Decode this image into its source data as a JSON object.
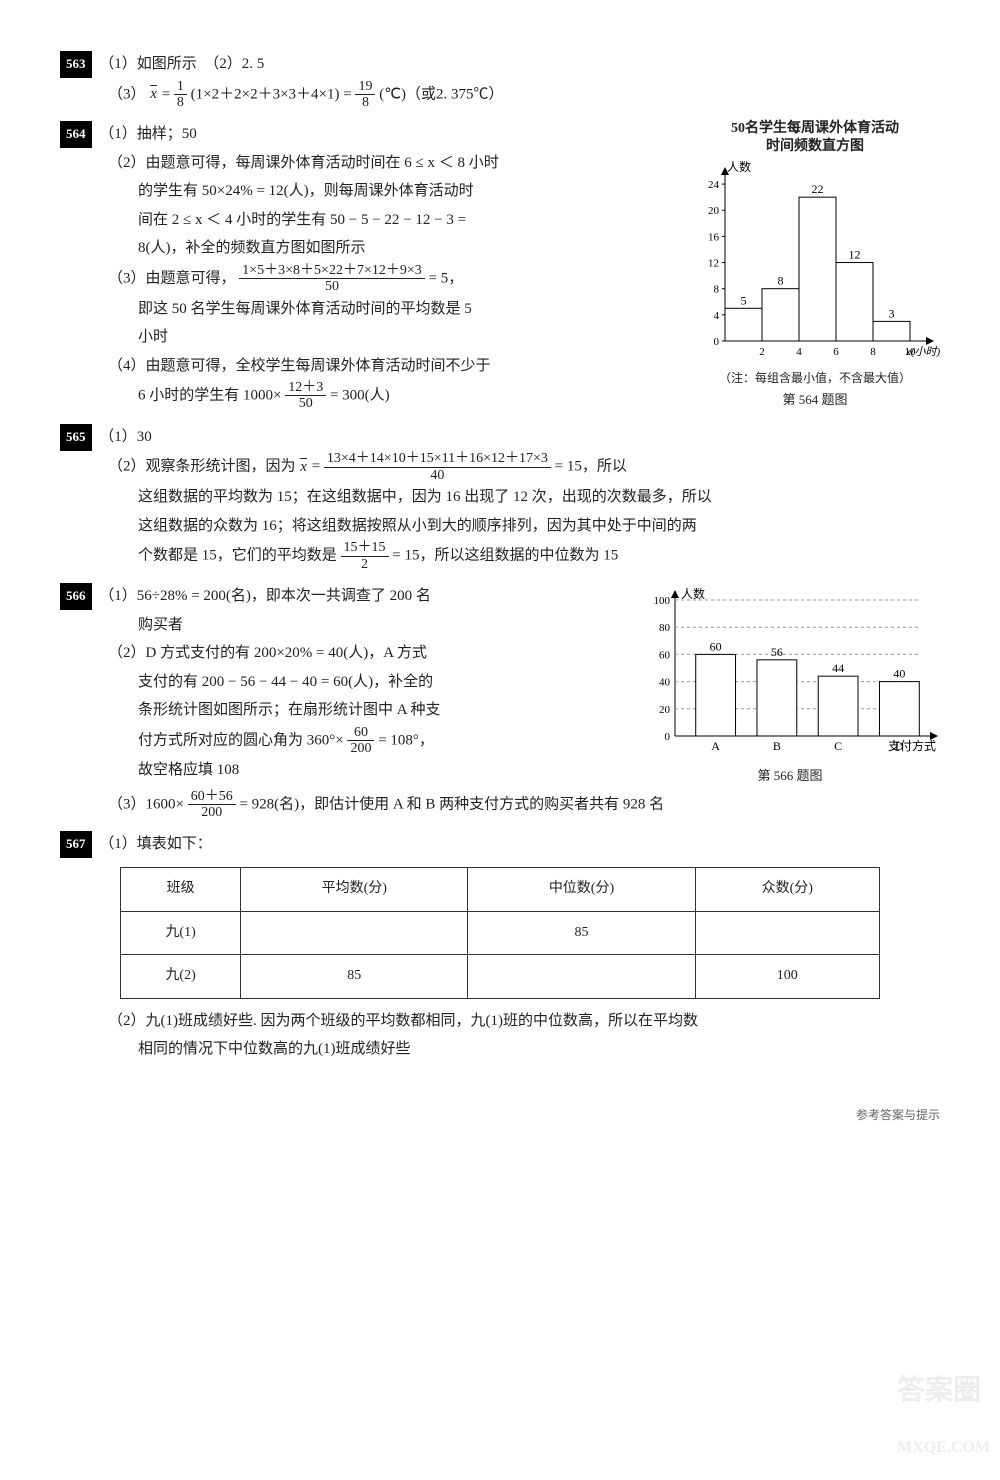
{
  "p563": {
    "num": "563",
    "part1": "（1）如图所示　（2）2. 5",
    "part3_pre": "（3）",
    "part3_body": " = ",
    "part3_f1_num": "1",
    "part3_f1_den": "8",
    "part3_mid": "(1×2＋2×2＋3×3＋4×1) = ",
    "part3_f2_num": "19",
    "part3_f2_den": "8",
    "part3_end": "(℃)（或2. 375℃）",
    "xbar": "x"
  },
  "p564": {
    "num": "564",
    "l1": "（1）抽样；50",
    "l2a": "（2）由题意可得，每周课外体育活动时间在 6 ≤ x ＜ 8 小时",
    "l2b": "的学生有 50×24% = 12(人)，则每周课外体育活动时",
    "l2c": "间在 2 ≤ x ＜ 4 小时的学生有 50 − 5 − 22 − 12 − 3 =",
    "l2d": "8(人)，补全的频数直方图如图所示",
    "l3a": "（3）由题意可得，",
    "l3_fnum": "1×5＋3×8＋5×22＋7×12＋9×3",
    "l3_fden": "50",
    "l3b": " = 5，",
    "l3c": "即这 50 名学生每周课外体育活动时间的平均数是 5",
    "l3d": "小时",
    "l4a": "（4）由题意可得，全校学生每周课外体育活动时间不少于",
    "l4b_pre": "6 小时的学生有 1000×",
    "l4_fnum": "12＋3",
    "l4_fden": "50",
    "l4b_post": " = 300(人)",
    "chart": {
      "title1": "50名学生每周课外体育活动",
      "title2": "时间频数直方图",
      "ylabel": "人数",
      "xlabel": "x(小时)",
      "note": "（注：每组含最小值，不含最大值）",
      "caption": "第 564 题图",
      "yticks": [
        0,
        4,
        8,
        12,
        16,
        20,
        24
      ],
      "xticks": [
        2,
        4,
        6,
        8,
        10
      ],
      "bars": [
        {
          "label": "5",
          "h": 5
        },
        {
          "label": "8",
          "h": 8
        },
        {
          "label": "22",
          "h": 22
        },
        {
          "label": "12",
          "h": 12
        },
        {
          "label": "3",
          "h": 3
        }
      ],
      "bar_stroke": "#000",
      "bar_fill": "#fff",
      "ymax": 26
    }
  },
  "p565": {
    "num": "565",
    "l1": "（1）30",
    "l2a": "（2）观察条形统计图，因为 ",
    "xbar": "x",
    "l2b": " = ",
    "fnum": "13×4＋14×10＋15×11＋16×12＋17×3",
    "fden": "40",
    "l2c": " = 15，所以",
    "l2d": "这组数据的平均数为 15；在这组数据中，因为 16 出现了 12 次，出现的次数最多，所以",
    "l2e": "这组数据的众数为 16；将这组数据按照从小到大的顺序排列，因为其中处于中间的两",
    "l2f_pre": "个数都是 15，它们的平均数是 ",
    "f2num": "15＋15",
    "f2den": "2",
    "l2f_post": " = 15，所以这组数据的中位数为 15"
  },
  "p566": {
    "num": "566",
    "l1a": "（1）56÷28% = 200(名)，即本次一共调查了 200 名",
    "l1b": "购买者",
    "l2a": "（2）D 方式支付的有 200×20% = 40(人)，A 方式",
    "l2b": "支付的有 200 − 56 − 44 − 40 = 60(人)，补全的",
    "l2c": "条形统计图如图所示；在扇形统计图中 A 种支",
    "l2d_pre": "付方式所对应的圆心角为 360°×",
    "l2_fnum": "60",
    "l2_fden": "200",
    "l2d_post": " = 108°，",
    "l2e": "故空格应填 108",
    "l3_pre": "（3）1600×",
    "l3_fnum": "60＋56",
    "l3_fden": "200",
    "l3_post": " = 928(名)，即估计使用 A 和 B 两种支付方式的购买者共有 928 名",
    "chart": {
      "ylabel": "人数",
      "xlabel": "支付方式",
      "caption": "第 566 题图",
      "yticks": [
        0,
        20,
        40,
        60,
        80,
        100
      ],
      "cats": [
        "A",
        "B",
        "C",
        "D"
      ],
      "bars": [
        {
          "label": "60",
          "h": 60
        },
        {
          "label": "56",
          "h": 56
        },
        {
          "label": "44",
          "h": 44
        },
        {
          "label": "40",
          "h": 40
        }
      ],
      "ymax": 100,
      "bar_stroke": "#000",
      "bar_fill": "#fff"
    }
  },
  "p567": {
    "num": "567",
    "l1": "（1）填表如下：",
    "headers": [
      "班级",
      "平均数(分)",
      "中位数(分)",
      "众数(分)"
    ],
    "rows": [
      [
        "九(1)",
        "",
        "85",
        ""
      ],
      [
        "九(2)",
        "85",
        "",
        "100"
      ]
    ],
    "l2a": "（2）九(1)班成绩好些. 因为两个班级的平均数都相同，九(1)班的中位数高，所以在平均数",
    "l2b": "相同的情况下中位数高的九(1)班成绩好些"
  },
  "footer": "参考答案与提示",
  "wm1": "答案圈",
  "wm2": "MXQE.COM"
}
